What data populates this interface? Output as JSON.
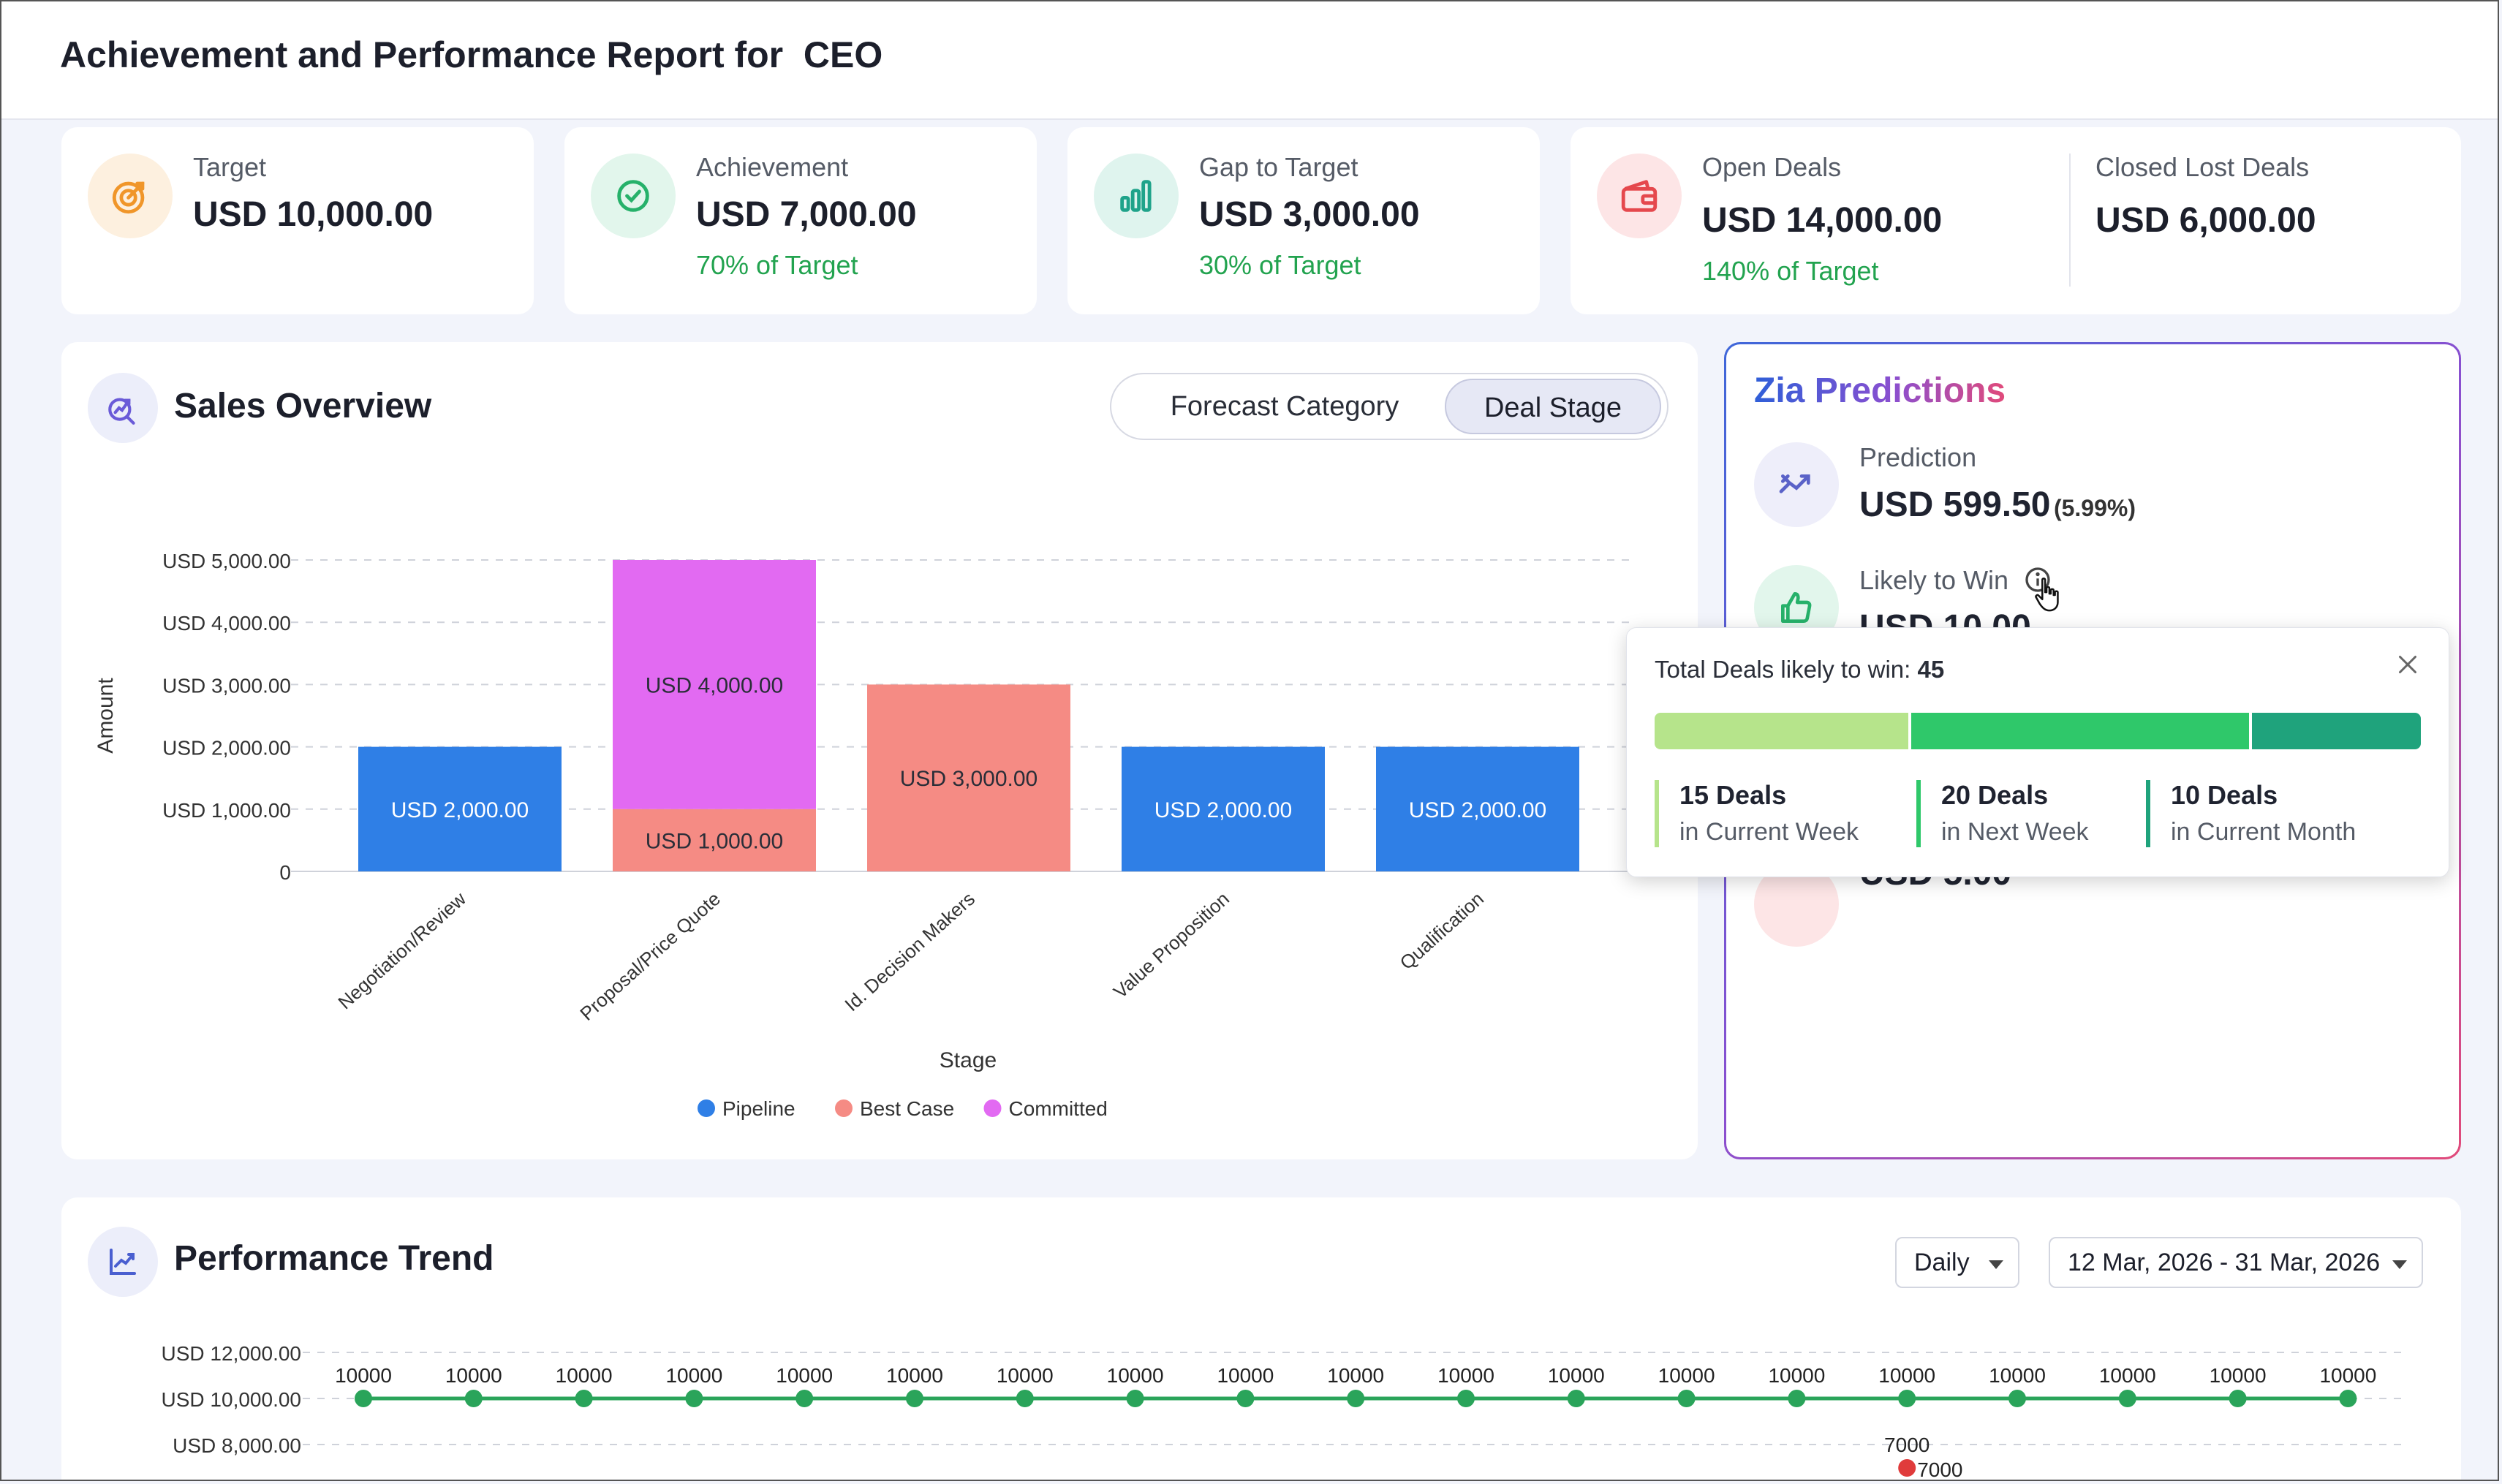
{
  "header": {
    "title": "Achievement and Performance Report for  CEO"
  },
  "kpis": [
    {
      "label": "Target",
      "value": "USD 10,000.00",
      "sub": "",
      "icon": "target-icon",
      "color": "#f0962a"
    },
    {
      "label": "Achievement",
      "value": "USD 7,000.00",
      "sub": "70% of Target",
      "icon": "check-circle-icon",
      "color": "#26b16a"
    },
    {
      "label": "Gap to Target",
      "value": "USD 3,000.00",
      "sub": "30% of Target",
      "icon": "bar-chart-icon",
      "color": "#1fa38a"
    },
    {
      "label": "Open Deals",
      "value": "USD 14,000.00",
      "sub": "140% of Target",
      "icon": "wallet-icon",
      "color": "#e5484d"
    },
    {
      "label": "Closed Lost Deals",
      "value": "USD 6,000.00",
      "sub": ""
    }
  ],
  "sales_overview": {
    "title": "Sales Overview",
    "toggle": {
      "option_a": "Forecast Category",
      "option_b": "Deal Stage",
      "selected": "Deal Stage"
    }
  },
  "chart_data": [
    {
      "type": "bar",
      "stacked": true,
      "title": "",
      "xlabel": "Stage",
      "ylabel": "Amount",
      "ylim": [
        0,
        5000
      ],
      "y_ticks": [
        "0",
        "USD 1,000.00",
        "USD 2,000.00",
        "USD 3,000.00",
        "USD 4,000.00",
        "USD 5,000.00"
      ],
      "categories": [
        "Negotiation/Review",
        "Proposal/Price Quote",
        "Id. Decision Makers",
        "Value Proposition",
        "Qualification"
      ],
      "series": [
        {
          "name": "Pipeline",
          "color": "#2f7fe6",
          "values": [
            2000,
            0,
            0,
            2000,
            2000
          ]
        },
        {
          "name": "Best Case",
          "color": "#f58b84",
          "values": [
            0,
            1000,
            3000,
            0,
            0
          ]
        },
        {
          "name": "Committed",
          "color": "#e26af2",
          "values": [
            0,
            4000,
            0,
            0,
            0
          ]
        }
      ],
      "data_labels": [
        {
          "category": 0,
          "series": 0,
          "text": "USD 2,000.00"
        },
        {
          "category": 1,
          "series": 1,
          "text": "USD 1,000.00"
        },
        {
          "category": 1,
          "series": 2,
          "text": "USD 4,000.00"
        },
        {
          "category": 2,
          "series": 1,
          "text": "USD 3,000.00"
        },
        {
          "category": 3,
          "series": 0,
          "text": "USD 2,000.00"
        },
        {
          "category": 4,
          "series": 0,
          "text": "USD 2,000.00"
        }
      ],
      "grid": true,
      "legend": "bottom"
    },
    {
      "type": "line",
      "title": "",
      "ylim": [
        8000,
        12000
      ],
      "y_ticks": [
        "USD 8,000.00",
        "USD 10,000.00",
        "USD 12,000.00"
      ],
      "grid": true,
      "series": [
        {
          "name": "",
          "color": "#2aa45a",
          "values": [
            10000,
            10000,
            10000,
            10000,
            10000,
            10000,
            10000,
            10000,
            10000,
            10000,
            10000,
            10000,
            10000,
            10000,
            10000,
            10000,
            10000,
            10000,
            10000
          ]
        },
        {
          "name": "",
          "color": "#e03b3b",
          "points": [
            {
              "index": 14,
              "value": 7000
            }
          ]
        }
      ]
    }
  ],
  "zia": {
    "title": "Zia Predictions",
    "prediction_label": "Prediction",
    "prediction_value": "USD 599.50",
    "prediction_pct": "(5.99%)",
    "likely_label": "Likely to Win",
    "likely_value": "USD 10.00",
    "lower_value": "USD 5.00"
  },
  "popup": {
    "title": "Total Deals likely to win: ",
    "total": "45",
    "segments": [
      {
        "count_text": "15 Deals",
        "period": "in Current Week",
        "count": 15,
        "color": "#b6e48b"
      },
      {
        "count_text": "20 Deals",
        "period": "in Next Week",
        "count": 20,
        "color": "#2fc86a"
      },
      {
        "count_text": "10 Deals",
        "period": "in Current Month",
        "count": 10,
        "color": "#1fa37c"
      }
    ]
  },
  "performance": {
    "title": "Performance Trend",
    "interval": "Daily",
    "date_range": "12 Mar, 2026 - 31 Mar, 2026"
  }
}
